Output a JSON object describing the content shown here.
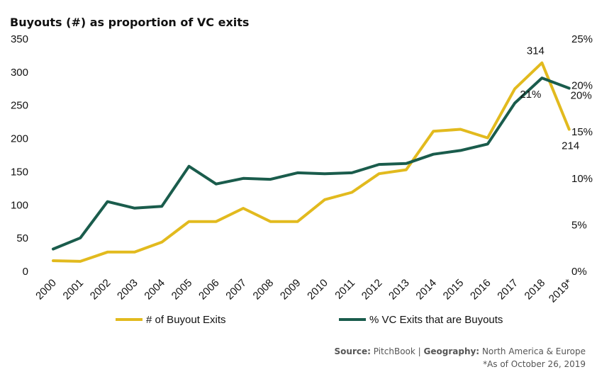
{
  "chart_data": {
    "type": "line",
    "title": "Buyouts (#) as proportion of VC exits",
    "categories": [
      "2000",
      "2001",
      "2002",
      "2003",
      "2004",
      "2005",
      "2006",
      "2007",
      "2008",
      "2009",
      "2010",
      "2011",
      "2012",
      "2013",
      "2014",
      "2015",
      "2016",
      "2017",
      "2018",
      "2019*"
    ],
    "series": [
      {
        "name": "# of Buyout Exits",
        "axis": "left",
        "color": "#E2BA1E",
        "values": [
          16,
          15,
          29,
          29,
          44,
          75,
          75,
          95,
          75,
          75,
          108,
          119,
          147,
          153,
          211,
          214,
          201,
          275,
          314,
          214
        ]
      },
      {
        "name": "% VC Exits that are Buyouts",
        "axis": "right",
        "color": "#1A5C4C",
        "values": [
          2.4,
          3.6,
          7.5,
          6.8,
          7.0,
          11.3,
          9.4,
          10.0,
          9.9,
          10.6,
          10.5,
          10.6,
          11.5,
          11.6,
          12.6,
          13.0,
          13.7,
          18.1,
          20.8,
          19.7
        ]
      }
    ],
    "y_left": {
      "min": 0,
      "max": 350,
      "ticks": [
        "350",
        "300",
        "250",
        "200",
        "150",
        "100",
        "50",
        "0"
      ]
    },
    "y_right": {
      "min": 0,
      "max": 25,
      "ticks": [
        "25%",
        "20%",
        "15%",
        "10%",
        "5%",
        "0%"
      ]
    },
    "annotations": [
      {
        "series": 0,
        "index": 18,
        "text": "314"
      },
      {
        "series": 0,
        "index": 19,
        "text": "214"
      },
      {
        "series": 1,
        "index": 18,
        "text": "21%"
      },
      {
        "series": 1,
        "index": 19,
        "text": "20%"
      }
    ],
    "grid": false,
    "legend_position": "bottom"
  },
  "source": {
    "label": "Source:",
    "value": "PitchBook |",
    "geo_label": "Geography:",
    "geo_value": "North America & Europe",
    "note": "*As of October 26, 2019"
  }
}
